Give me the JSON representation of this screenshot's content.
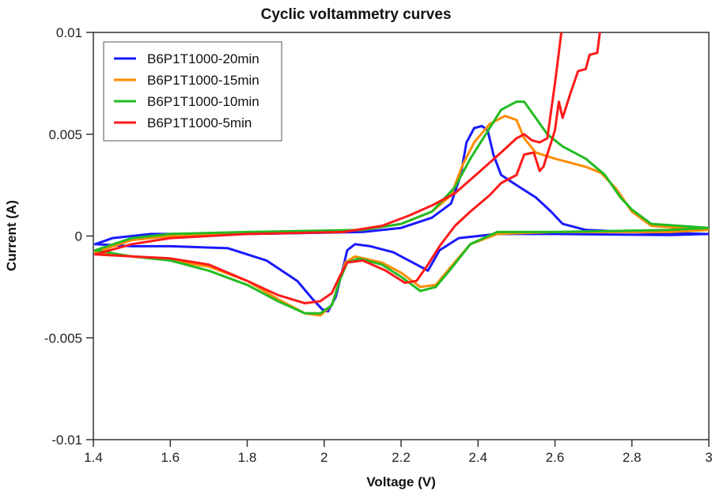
{
  "chart_data": {
    "type": "line",
    "title": "Cyclic voltammetry curves",
    "xlabel": "Voltage (V)",
    "ylabel": "Current (A)",
    "xlim": [
      1.4,
      3.0
    ],
    "ylim": [
      -0.01,
      0.01
    ],
    "xticks": [
      1.4,
      1.6,
      1.8,
      2.0,
      2.2,
      2.4,
      2.6,
      2.8,
      3.0
    ],
    "xtick_labels": [
      "1.4",
      "1.6",
      "1.8",
      "2",
      "2.2",
      "2.4",
      "2.6",
      "2.8",
      "3"
    ],
    "yticks": [
      0.01,
      0.005,
      0,
      -0.005,
      -0.01
    ],
    "ytick_labels": [
      "0.01",
      "0.005",
      "0",
      "-0.005",
      "-0.01"
    ],
    "grid": false,
    "legend_position": "top-left",
    "series": [
      {
        "name": "B6P1T1000-20min",
        "color": "#1a1aff",
        "points": [
          [
            1.405,
            -0.0004
          ],
          [
            1.45,
            -0.0001
          ],
          [
            1.55,
            0.0001
          ],
          [
            1.8,
            0.0001
          ],
          [
            2.1,
            0.0002
          ],
          [
            2.2,
            0.0004
          ],
          [
            2.28,
            0.0009
          ],
          [
            2.33,
            0.0016
          ],
          [
            2.355,
            0.003
          ],
          [
            2.37,
            0.0046
          ],
          [
            2.39,
            0.0053
          ],
          [
            2.41,
            0.0054
          ],
          [
            2.425,
            0.0052
          ],
          [
            2.44,
            0.004
          ],
          [
            2.46,
            0.003
          ],
          [
            2.5,
            0.0025
          ],
          [
            2.55,
            0.0019
          ],
          [
            2.59,
            0.0012
          ],
          [
            2.62,
            0.0006
          ],
          [
            2.68,
            0.0003
          ],
          [
            2.8,
            0.0002
          ],
          [
            3.0,
            0.0001
          ],
          [
            2.9,
            5e-05
          ],
          [
            2.6,
            0.0001
          ],
          [
            2.45,
            0.0001
          ],
          [
            2.35,
            -0.0001
          ],
          [
            2.3,
            -0.0007
          ],
          [
            2.27,
            -0.0017
          ],
          [
            2.24,
            -0.0014
          ],
          [
            2.18,
            -0.0008
          ],
          [
            2.12,
            -0.0005
          ],
          [
            2.08,
            -0.0004
          ],
          [
            2.06,
            -0.0007
          ],
          [
            2.05,
            -0.0015
          ],
          [
            2.03,
            -0.003
          ],
          [
            2.01,
            -0.0037
          ],
          [
            1.995,
            -0.0036
          ],
          [
            1.97,
            -0.0031
          ],
          [
            1.93,
            -0.0022
          ],
          [
            1.85,
            -0.0012
          ],
          [
            1.75,
            -0.0006
          ],
          [
            1.6,
            -0.0005
          ],
          [
            1.5,
            -0.0005
          ],
          [
            1.405,
            -0.0004
          ]
        ]
      },
      {
        "name": "B6P1T1000-15min",
        "color": "#ff8c00",
        "points": [
          [
            1.405,
            -0.0008
          ],
          [
            1.5,
            -0.0002
          ],
          [
            1.6,
            0.0
          ],
          [
            1.8,
            0.0001
          ],
          [
            2.1,
            0.0003
          ],
          [
            2.2,
            0.0006
          ],
          [
            2.28,
            0.0012
          ],
          [
            2.33,
            0.002
          ],
          [
            2.36,
            0.0035
          ],
          [
            2.39,
            0.0046
          ],
          [
            2.43,
            0.0055
          ],
          [
            2.47,
            0.0059
          ],
          [
            2.5,
            0.0057
          ],
          [
            2.52,
            0.0048
          ],
          [
            2.55,
            0.0041
          ],
          [
            2.6,
            0.0038
          ],
          [
            2.68,
            0.0034
          ],
          [
            2.72,
            0.0031
          ],
          [
            2.76,
            0.0023
          ],
          [
            2.8,
            0.0012
          ],
          [
            2.85,
            0.0005
          ],
          [
            3.0,
            0.0003
          ],
          [
            2.9,
            0.0002
          ],
          [
            2.6,
            0.0002
          ],
          [
            2.45,
            0.0001
          ],
          [
            2.38,
            -0.0004
          ],
          [
            2.33,
            -0.0015
          ],
          [
            2.29,
            -0.0024
          ],
          [
            2.25,
            -0.0025
          ],
          [
            2.2,
            -0.0018
          ],
          [
            2.15,
            -0.0013
          ],
          [
            2.08,
            -0.001
          ],
          [
            2.055,
            -0.0013
          ],
          [
            2.04,
            -0.0022
          ],
          [
            2.02,
            -0.0034
          ],
          [
            1.99,
            -0.0039
          ],
          [
            1.95,
            -0.0038
          ],
          [
            1.88,
            -0.0031
          ],
          [
            1.8,
            -0.0022
          ],
          [
            1.7,
            -0.0015
          ],
          [
            1.6,
            -0.0012
          ],
          [
            1.5,
            -0.001
          ],
          [
            1.405,
            -0.0008
          ]
        ]
      },
      {
        "name": "B6P1T1000-10min",
        "color": "#22bb22",
        "points": [
          [
            1.405,
            -0.0007
          ],
          [
            1.5,
            -0.0001
          ],
          [
            1.6,
            0.0001
          ],
          [
            1.8,
            0.0002
          ],
          [
            2.1,
            0.0003
          ],
          [
            2.2,
            0.0006
          ],
          [
            2.28,
            0.0012
          ],
          [
            2.34,
            0.0024
          ],
          [
            2.38,
            0.0038
          ],
          [
            2.42,
            0.005
          ],
          [
            2.46,
            0.0062
          ],
          [
            2.5,
            0.0066
          ],
          [
            2.52,
            0.0066
          ],
          [
            2.55,
            0.0058
          ],
          [
            2.58,
            0.005
          ],
          [
            2.62,
            0.0044
          ],
          [
            2.68,
            0.0038
          ],
          [
            2.73,
            0.003
          ],
          [
            2.77,
            0.0019
          ],
          [
            2.8,
            0.0013
          ],
          [
            2.85,
            0.0006
          ],
          [
            3.0,
            0.0004
          ],
          [
            2.9,
            0.0003
          ],
          [
            2.6,
            0.0002
          ],
          [
            2.45,
            0.0002
          ],
          [
            2.38,
            -0.0004
          ],
          [
            2.33,
            -0.0016
          ],
          [
            2.29,
            -0.0025
          ],
          [
            2.25,
            -0.0027
          ],
          [
            2.2,
            -0.002
          ],
          [
            2.15,
            -0.0014
          ],
          [
            2.09,
            -0.0011
          ],
          [
            2.06,
            -0.0013
          ],
          [
            2.04,
            -0.0022
          ],
          [
            2.02,
            -0.0034
          ],
          [
            1.99,
            -0.0038
          ],
          [
            1.95,
            -0.0038
          ],
          [
            1.88,
            -0.0032
          ],
          [
            1.8,
            -0.0024
          ],
          [
            1.7,
            -0.0017
          ],
          [
            1.6,
            -0.0012
          ],
          [
            1.5,
            -0.001
          ],
          [
            1.405,
            -0.0007
          ]
        ]
      },
      {
        "name": "B6P1T1000-5min",
        "color": "#ff1a1a",
        "points": [
          [
            1.405,
            -0.0009
          ],
          [
            1.5,
            -0.0004
          ],
          [
            1.6,
            -0.0001
          ],
          [
            1.8,
            0.0001
          ],
          [
            2.05,
            0.0002
          ],
          [
            2.15,
            0.0005
          ],
          [
            2.22,
            0.001
          ],
          [
            2.28,
            0.0015
          ],
          [
            2.34,
            0.0021
          ],
          [
            2.4,
            0.0031
          ],
          [
            2.46,
            0.0041
          ],
          [
            2.5,
            0.0048
          ],
          [
            2.52,
            0.005
          ],
          [
            2.54,
            0.0047
          ],
          [
            2.56,
            0.0046
          ],
          [
            2.58,
            0.0048
          ],
          [
            2.6,
            0.0075
          ],
          [
            2.62,
            0.0105
          ],
          [
            2.72,
            0.0105
          ],
          [
            2.71,
            0.009
          ],
          [
            2.69,
            0.0089
          ],
          [
            2.68,
            0.0082
          ],
          [
            2.66,
            0.0081
          ],
          [
            2.64,
            0.007
          ],
          [
            2.62,
            0.0058
          ],
          [
            2.61,
            0.0066
          ],
          [
            2.6,
            0.0052
          ],
          [
            2.57,
            0.0034
          ],
          [
            2.56,
            0.0032
          ],
          [
            2.545,
            0.0041
          ],
          [
            2.52,
            0.004
          ],
          [
            2.5,
            0.003
          ],
          [
            2.46,
            0.0026
          ],
          [
            2.43,
            0.002
          ],
          [
            2.38,
            0.0012
          ],
          [
            2.34,
            0.0005
          ],
          [
            2.3,
            -0.0005
          ],
          [
            2.27,
            -0.0014
          ],
          [
            2.24,
            -0.0022
          ],
          [
            2.21,
            -0.0023
          ],
          [
            2.16,
            -0.0017
          ],
          [
            2.1,
            -0.0012
          ],
          [
            2.06,
            -0.0013
          ],
          [
            2.04,
            -0.002
          ],
          [
            2.02,
            -0.0028
          ],
          [
            1.99,
            -0.0032
          ],
          [
            1.95,
            -0.0033
          ],
          [
            1.88,
            -0.0029
          ],
          [
            1.8,
            -0.0022
          ],
          [
            1.7,
            -0.0014
          ],
          [
            1.6,
            -0.0011
          ],
          [
            1.5,
            -0.001
          ],
          [
            1.405,
            -0.0009
          ]
        ]
      }
    ]
  }
}
